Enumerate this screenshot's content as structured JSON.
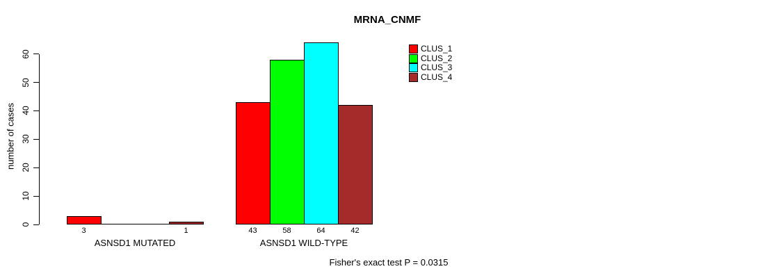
{
  "page": {
    "background": "#ffffff",
    "text_color": "#000000"
  },
  "chart_data": {
    "type": "bar",
    "title": "MRNA_CNMF",
    "xlabel": "",
    "ylabel": "number of cases",
    "ylim": [
      0,
      60
    ],
    "yticks": [
      0,
      10,
      20,
      30,
      40,
      50,
      60
    ],
    "grid": false,
    "legend_position": "top-right",
    "categories": [
      "ASNSD1 MUTATED",
      "ASNSD1 WILD-TYPE"
    ],
    "series": [
      {
        "name": "CLUS_1",
        "color": "#ff0000",
        "values": [
          3,
          43
        ]
      },
      {
        "name": "CLUS_2",
        "color": "#00ff00",
        "values": [
          0,
          58
        ]
      },
      {
        "name": "CLUS_3",
        "color": "#00ffff",
        "values": [
          0,
          64
        ]
      },
      {
        "name": "CLUS_4",
        "color": "#a52a2a",
        "values": [
          1,
          42
        ]
      }
    ],
    "bar_value_labels": [
      [
        "3",
        "",
        "",
        "1"
      ],
      [
        "43",
        "58",
        "64",
        "42"
      ]
    ],
    "annotation": "Fisher's exact test P = 0.0315",
    "axis_color": "#000000"
  }
}
